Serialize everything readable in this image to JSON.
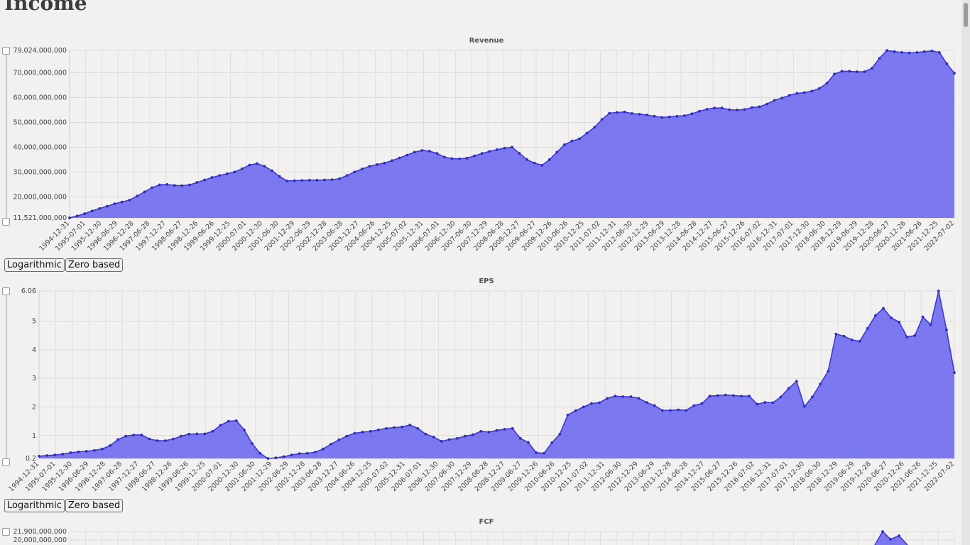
{
  "page": {
    "title": "Income"
  },
  "buttons": {
    "log": "Logarithmic",
    "zero": "Zero based"
  },
  "chart_data": [
    {
      "type": "area",
      "title": "Revenue",
      "color": "#5b57f0",
      "ylim": [
        11521000000,
        79024000000
      ],
      "y_ticks": [
        "11,521,000,000",
        "20,000,000,000",
        "30,000,000,000",
        "40,000,000,000",
        "50,000,000,000",
        "60,000,000,000",
        "70,000,000,000",
        "79,024,000,000"
      ],
      "x_tick_labels": [
        "1994-12-31",
        "1995-07-01",
        "1995-12-30",
        "1996-06-29",
        "1996-12-28",
        "1997-06-28",
        "1997-12-27",
        "1998-06-27",
        "1998-12-26",
        "1999-06-26",
        "1999-12-25",
        "2000-07-01",
        "2000-12-30",
        "2001-06-30",
        "2001-12-29",
        "2002-06-29",
        "2002-12-28",
        "2003-06-28",
        "2003-12-27",
        "2004-06-26",
        "2004-12-25",
        "2005-07-02",
        "2005-12-31",
        "2006-07-01",
        "2006-12-30",
        "2007-06-30",
        "2007-12-29",
        "2008-06-28",
        "2008-12-27",
        "2009-06-27",
        "2009-12-26",
        "2010-06-26",
        "2010-12-25",
        "2011-07-02",
        "2011-12-31",
        "2012-06-30",
        "2012-12-29",
        "2013-06-29",
        "2013-12-28",
        "2014-06-28",
        "2014-12-27",
        "2015-06-27",
        "2015-12-26",
        "2016-07-02",
        "2016-12-31",
        "2017-07-01",
        "2017-12-30",
        "2018-06-30",
        "2018-12-29",
        "2019-06-29",
        "2019-12-28",
        "2020-06-27",
        "2020-12-26",
        "2021-06-26",
        "2021-12-25",
        "2022-07-02"
      ],
      "values": [
        11.5,
        12.3,
        13.2,
        14.3,
        15.3,
        16.2,
        17.2,
        17.9,
        18.7,
        20.3,
        22,
        23.7,
        24.8,
        25,
        24.6,
        24.5,
        24.8,
        25.8,
        26.8,
        27.8,
        28.6,
        29.3,
        30,
        31.3,
        32.8,
        33.4,
        32.3,
        30.5,
        28.2,
        26.4,
        26.5,
        26.6,
        26.7,
        26.7,
        26.8,
        26.9,
        27.3,
        28.6,
        30,
        31.2,
        32.3,
        33,
        33.6,
        34.6,
        35.7,
        36.8,
        38,
        38.7,
        38.4,
        37.5,
        36,
        35.4,
        35.3,
        35.6,
        36.5,
        37.5,
        38.3,
        39,
        39.6,
        40,
        37.5,
        35,
        33.6,
        32.7,
        35,
        38,
        41,
        42.5,
        43.4,
        45.7,
        48,
        51.2,
        53.7,
        54,
        54.2,
        53.6,
        53.3,
        53,
        52.5,
        52,
        52.2,
        52.5,
        52.7,
        53.5,
        54.5,
        55.3,
        55.8,
        55.8,
        55.1,
        55,
        55.2,
        56,
        56.3,
        57.4,
        58.9,
        59.8,
        60.9,
        61.7,
        62,
        62.6,
        63.7,
        65.8,
        69.5,
        70.6,
        70.6,
        70.4,
        70.4,
        71.8,
        75.8,
        79,
        78.5,
        78.2,
        78,
        78.2,
        78.5,
        78.8,
        78.2,
        73.6,
        69.8
      ]
    },
    {
      "type": "area",
      "title": "EPS",
      "color": "#5b57f0",
      "ylim": [
        0.2,
        6.06
      ],
      "y_ticks": [
        "0.2",
        "1",
        "2",
        "3",
        "4",
        "5",
        "6.06"
      ],
      "x_tick_labels": [
        "1994-12-31",
        "1995-07-01",
        "1995-12-30",
        "1996-06-29",
        "1996-12-28",
        "1997-06-28",
        "1997-12-27",
        "1998-06-27",
        "1998-12-26",
        "1999-06-26",
        "1999-12-25",
        "2000-07-01",
        "2000-12-30",
        "2001-06-30",
        "2001-12-29",
        "2002-06-29",
        "2002-12-28",
        "2003-06-28",
        "2003-12-27",
        "2004-06-26",
        "2004-12-25",
        "2005-07-02",
        "2005-12-31",
        "2006-07-01",
        "2006-12-30",
        "2007-06-30",
        "2007-12-29",
        "2008-06-28",
        "2008-12-27",
        "2009-06-27",
        "2009-12-26",
        "2010-06-26",
        "2010-12-25",
        "2011-07-02",
        "2011-12-31",
        "2012-06-30",
        "2012-12-29",
        "2013-06-29",
        "2013-12-28",
        "2014-06-28",
        "2014-12-27",
        "2015-06-27",
        "2015-12-26",
        "2016-07-02",
        "2016-12-31",
        "2017-07-01",
        "2017-12-30",
        "2018-06-30",
        "2018-12-29",
        "2019-06-29",
        "2019-12-28",
        "2020-06-27",
        "2020-12-26",
        "2021-06-26",
        "2021-12-25",
        "2022-07-02"
      ],
      "values": [
        0.28,
        0.3,
        0.32,
        0.35,
        0.4,
        0.43,
        0.45,
        0.48,
        0.53,
        0.65,
        0.86,
        0.98,
        1.02,
        1.02,
        0.88,
        0.82,
        0.82,
        0.88,
        0.98,
        1.05,
        1.06,
        1.06,
        1.15,
        1.36,
        1.5,
        1.52,
        1.2,
        0.72,
        0.38,
        0.2,
        0.22,
        0.26,
        0.32,
        0.37,
        0.38,
        0.42,
        0.53,
        0.7,
        0.85,
        0.98,
        1.08,
        1.12,
        1.15,
        1.2,
        1.25,
        1.28,
        1.3,
        1.37,
        1.25,
        1.05,
        0.95,
        0.8,
        0.86,
        0.9,
        0.98,
        1.03,
        1.15,
        1.12,
        1.18,
        1.22,
        1.25,
        0.9,
        0.76,
        0.4,
        0.38,
        0.75,
        1.05,
        1.72,
        1.87,
        2,
        2.12,
        2.15,
        2.3,
        2.38,
        2.36,
        2.36,
        2.3,
        2.16,
        2.05,
        1.88,
        1.88,
        1.9,
        1.88,
        2.05,
        2.12,
        2.38,
        2.4,
        2.42,
        2.4,
        2.38,
        2.38,
        2.1,
        2.16,
        2.15,
        2.35,
        2.65,
        2.9,
        2.02,
        2.35,
        2.8,
        3.25,
        4.55,
        4.48,
        4.35,
        4.3,
        4.75,
        5.2,
        5.45,
        5.12,
        4.97,
        4.45,
        4.5,
        5.15,
        4.88,
        6.06,
        4.7,
        3.2
      ]
    },
    {
      "type": "area",
      "title": "FCF",
      "color": "#5b57f0",
      "ylim": [
        0,
        21900000000
      ],
      "y_ticks": [
        "20,000,000,000",
        "21,900,000,000"
      ],
      "values": [
        21.9
      ]
    }
  ]
}
